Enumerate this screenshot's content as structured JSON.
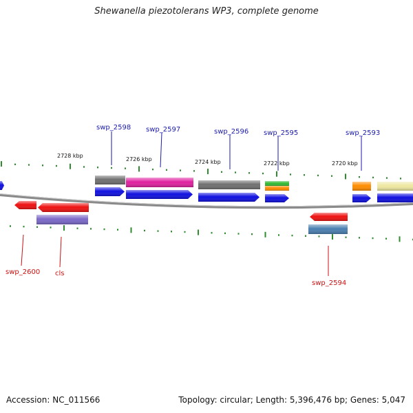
{
  "title": "Shewanella piezotolerans WP3, complete genome",
  "footer": {
    "accession": "Accession: NC_011566",
    "summary": "Topology: circular; Length: 5,396,476 bp; Genes: 5,047"
  },
  "colors": {
    "backbone": "#8a8a8a",
    "tick": "#2e8b2e",
    "label_forward": "#1a1aaa",
    "label_reverse": "#cc1111",
    "cds_blue": "#1010e0",
    "red": "#ee1111",
    "gray": "#707070",
    "magenta": "#e020a0",
    "purple": "#7b68c8",
    "green": "#33bb33",
    "orange": "#ff8c00",
    "steel": "#4a7fb0",
    "khaki": "#eee8a0"
  },
  "scale_labels": [
    {
      "text": "2728 kbp",
      "kbp": 2728
    },
    {
      "text": "2726 kbp",
      "kbp": 2726
    },
    {
      "text": "2724 kbp",
      "kbp": 2724
    },
    {
      "text": "2722 kbp",
      "kbp": 2722
    },
    {
      "text": "2720 kbp",
      "kbp": 2720
    }
  ],
  "gene_labels": [
    {
      "text": "swp_2598",
      "strand": "forward"
    },
    {
      "text": "swp_2597",
      "strand": "forward"
    },
    {
      "text": "swp_2596",
      "strand": "forward"
    },
    {
      "text": "swp_2595",
      "strand": "forward"
    },
    {
      "text": "swp_2593",
      "strand": "forward"
    },
    {
      "text": "swp_2600",
      "strand": "reverse"
    },
    {
      "text": "cls",
      "strand": "reverse"
    },
    {
      "text": "swp_2594",
      "strand": "reverse"
    }
  ]
}
